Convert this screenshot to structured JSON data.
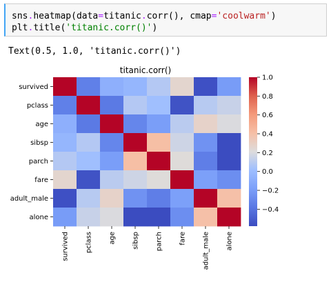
{
  "code_cell": {
    "line1": {
      "obj": "sns",
      "dot1": ".",
      "func": "heatmap",
      "paren_open": "(",
      "arg1_name": "data",
      "eq1": "=",
      "arg1_value": "titanic",
      "dot2": ".",
      "method": "corr",
      "call": "()",
      "comma": ", ",
      "arg2_name": "cmap",
      "eq2": "=",
      "arg2_value": "'coolwarm'",
      "paren_close": ")"
    },
    "line2": {
      "obj": "plt",
      "dot": ".",
      "func": "title",
      "paren_open": "(",
      "arg": "'titanic.corr()'",
      "paren_close": ")"
    }
  },
  "output": {
    "text": "Text(0.5, 1.0, 'titanic.corr()')"
  },
  "chart_data": {
    "type": "heatmap",
    "title": "titanic.corr()",
    "rows": [
      "survived",
      "pclass",
      "age",
      "sibsp",
      "parch",
      "fare",
      "adult_male",
      "alone"
    ],
    "cols": [
      "survived",
      "pclass",
      "age",
      "sibsp",
      "parch",
      "fare",
      "adult_male",
      "alone"
    ],
    "values": [
      [
        1.0,
        -0.34,
        -0.08,
        -0.04,
        0.08,
        0.26,
        -0.56,
        -0.2
      ],
      [
        -0.34,
        1.0,
        -0.37,
        0.08,
        0.02,
        -0.55,
        0.09,
        0.14
      ],
      [
        -0.08,
        -0.37,
        1.0,
        -0.31,
        -0.19,
        0.1,
        0.28,
        0.2
      ],
      [
        -0.04,
        0.08,
        -0.31,
        1.0,
        0.41,
        0.16,
        -0.25,
        -0.58
      ],
      [
        0.08,
        0.02,
        -0.19,
        0.41,
        1.0,
        0.22,
        -0.35,
        -0.58
      ],
      [
        0.26,
        -0.55,
        0.1,
        0.16,
        0.22,
        1.0,
        -0.18,
        -0.27
      ],
      [
        -0.56,
        0.09,
        0.28,
        -0.25,
        -0.35,
        -0.18,
        1.0,
        0.4
      ],
      [
        -0.2,
        0.14,
        0.2,
        -0.58,
        -0.58,
        -0.27,
        0.4,
        1.0
      ]
    ],
    "colormap": "coolwarm",
    "colorbar": {
      "vmin": -0.58,
      "vmax": 1.0,
      "ticks": [
        1.0,
        0.8,
        0.6,
        0.4,
        0.2,
        0.0,
        -0.2,
        -0.4
      ],
      "tick_labels": [
        "1.0",
        "0.8",
        "0.6",
        "0.4",
        "0.2",
        "0.0",
        "−0.2",
        "−0.4"
      ]
    }
  }
}
